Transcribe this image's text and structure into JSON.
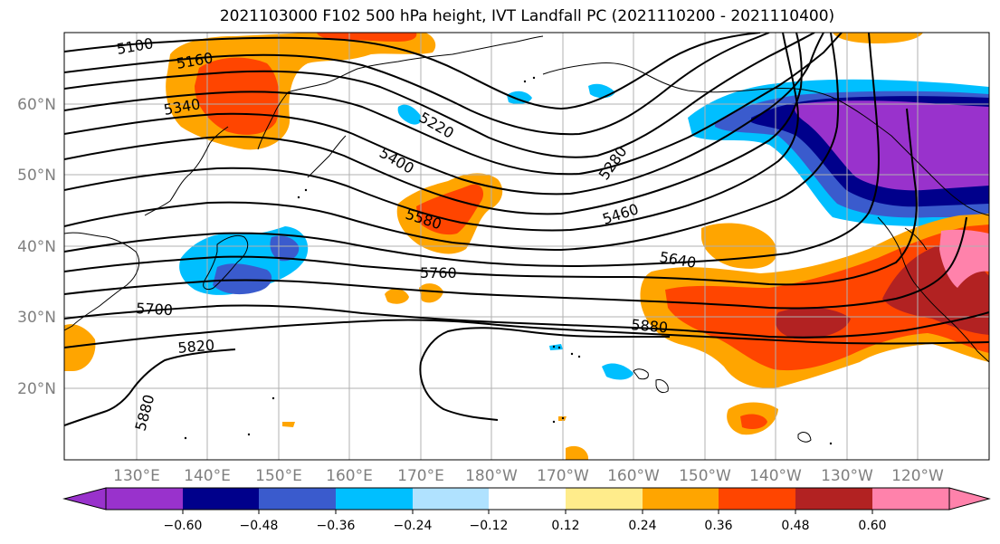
{
  "title": "2021103000 F102 500 hPa height, IVT Landfall PC (2021110200 - 2021110400)",
  "map": {
    "lat_ticks": [
      "60°N",
      "50°N",
      "40°N",
      "30°N",
      "20°N"
    ],
    "lon_ticks": [
      "130°E",
      "140°E",
      "150°E",
      "160°E",
      "170°E",
      "180°W",
      "170°W",
      "160°W",
      "150°W",
      "140°W",
      "130°W",
      "120°W"
    ],
    "contour_labels": [
      "5100",
      "5160",
      "5340",
      "5220",
      "5400",
      "5280",
      "5460",
      "5580",
      "5640",
      "5760",
      "5700",
      "5880",
      "5820",
      "5880"
    ]
  },
  "colorbar": {
    "ticks": [
      "−0.60",
      "−0.48",
      "−0.36",
      "−0.24",
      "−0.12",
      "0.12",
      "0.24",
      "0.36",
      "0.48",
      "0.60"
    ],
    "colors": [
      "#9932cc",
      "#00008b",
      "#3a5bcd",
      "#00bfff",
      "#b0e2ff",
      "#ffffff",
      "#ffffff",
      "#ffec8b",
      "#ffa500",
      "#ff4500",
      "#b22222",
      "#ff82ab"
    ]
  }
}
